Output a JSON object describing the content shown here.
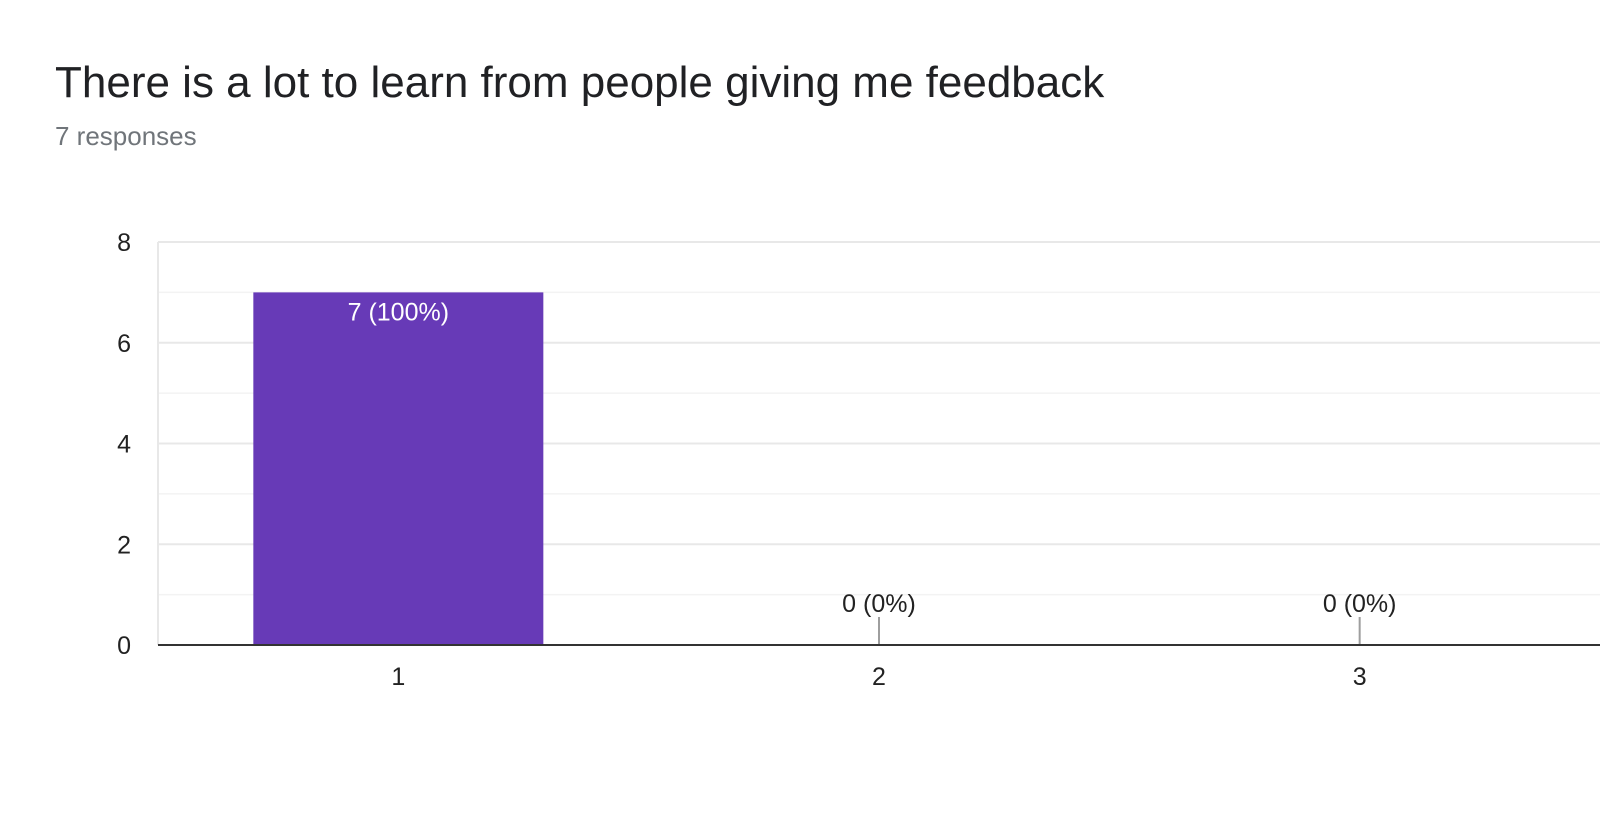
{
  "question": {
    "title": "There is a lot to learn from people giving me feedback",
    "responses_label": "7 responses"
  },
  "colors": {
    "bar": "#673ab7",
    "grid_major": "#e8e8e8",
    "grid_minor": "#f3f3f3",
    "axis": "#333333",
    "tick_text": "#222222",
    "label_inside": "#ffffff",
    "label_outside": "#222222",
    "zero_stub": "#9e9e9e"
  },
  "chart_data": {
    "type": "bar",
    "categories": [
      "1",
      "2",
      "3"
    ],
    "values": [
      7,
      0,
      0
    ],
    "data_labels": [
      "7 (100%)",
      "0 (0%)",
      "0 (0%)"
    ],
    "ylim": [
      0,
      8
    ],
    "yticks": [
      0,
      2,
      4,
      6,
      8
    ],
    "title": "",
    "xlabel": "",
    "ylabel": "",
    "grid": true,
    "legend": "none"
  }
}
